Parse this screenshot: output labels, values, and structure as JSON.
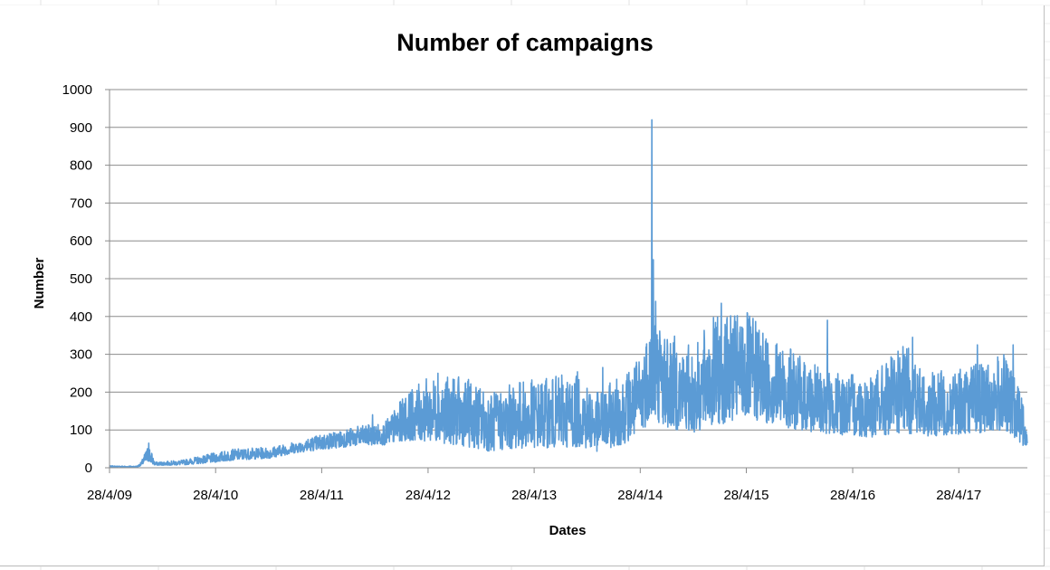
{
  "chart_data": {
    "type": "line",
    "title": "Number of campaigns",
    "xlabel": "Dates",
    "ylabel": "Number",
    "ylim": [
      0,
      1000
    ],
    "yticks": [
      "0",
      "100",
      "200",
      "300",
      "400",
      "500",
      "600",
      "700",
      "800",
      "900",
      "1000"
    ],
    "x_range": [
      "2009-04-28",
      "2017-12-20"
    ],
    "xticks": [
      {
        "label": "28/4/09",
        "date": "2009-04-28"
      },
      {
        "label": "28/4/10",
        "date": "2010-04-28"
      },
      {
        "label": "28/4/11",
        "date": "2011-04-28"
      },
      {
        "label": "28/4/12",
        "date": "2012-04-28"
      },
      {
        "label": "28/4/13",
        "date": "2013-04-28"
      },
      {
        "label": "28/4/14",
        "date": "2014-04-28"
      },
      {
        "label": "28/4/15",
        "date": "2015-04-28"
      },
      {
        "label": "28/4/16",
        "date": "2016-04-28"
      },
      {
        "label": "28/4/17",
        "date": "2017-04-28"
      }
    ],
    "grid": true,
    "legend": "none",
    "series": [
      {
        "color": "#5b9bd5",
        "envelope": [
          {
            "date": "2009-04-28",
            "low": 0,
            "high": 5
          },
          {
            "date": "2009-08-01",
            "low": 0,
            "high": 5
          },
          {
            "date": "2009-08-15",
            "low": 5,
            "high": 15
          },
          {
            "date": "2009-09-10",
            "low": 5,
            "high": 65
          },
          {
            "date": "2009-10-01",
            "low": 5,
            "high": 15
          },
          {
            "date": "2010-01-01",
            "low": 5,
            "high": 20
          },
          {
            "date": "2010-04-28",
            "low": 10,
            "high": 40
          },
          {
            "date": "2010-07-01",
            "low": 15,
            "high": 50
          },
          {
            "date": "2010-11-01",
            "low": 20,
            "high": 55
          },
          {
            "date": "2011-02-01",
            "low": 35,
            "high": 70
          },
          {
            "date": "2011-04-28",
            "low": 40,
            "high": 90
          },
          {
            "date": "2011-09-01",
            "low": 50,
            "high": 110
          },
          {
            "date": "2011-12-01",
            "low": 50,
            "high": 120
          },
          {
            "date": "2012-02-15",
            "low": 50,
            "high": 200
          },
          {
            "date": "2012-05-01",
            "low": 40,
            "high": 240
          },
          {
            "date": "2012-09-01",
            "low": 25,
            "high": 240
          },
          {
            "date": "2012-12-01",
            "low": 15,
            "high": 200
          },
          {
            "date": "2013-03-01",
            "low": 20,
            "high": 230
          },
          {
            "date": "2013-07-01",
            "low": 20,
            "high": 240
          },
          {
            "date": "2013-10-01",
            "low": 20,
            "high": 255
          },
          {
            "date": "2013-12-01",
            "low": 15,
            "high": 200
          },
          {
            "date": "2014-03-01",
            "low": 30,
            "high": 250
          },
          {
            "date": "2014-05-01",
            "low": 50,
            "high": 300
          },
          {
            "date": "2014-06-01",
            "low": 80,
            "high": 430
          },
          {
            "date": "2014-08-01",
            "low": 60,
            "high": 360
          },
          {
            "date": "2014-11-01",
            "low": 50,
            "high": 320
          },
          {
            "date": "2015-01-01",
            "low": 60,
            "high": 400
          },
          {
            "date": "2015-04-28",
            "low": 80,
            "high": 410
          },
          {
            "date": "2015-09-01",
            "low": 70,
            "high": 330
          },
          {
            "date": "2015-12-01",
            "low": 60,
            "high": 280
          },
          {
            "date": "2016-03-01",
            "low": 60,
            "high": 250
          },
          {
            "date": "2016-07-01",
            "low": 50,
            "high": 250
          },
          {
            "date": "2016-11-01",
            "low": 50,
            "high": 330
          },
          {
            "date": "2017-01-01",
            "low": 50,
            "high": 250
          },
          {
            "date": "2017-06-01",
            "low": 60,
            "high": 270
          },
          {
            "date": "2017-10-01",
            "low": 60,
            "high": 300
          },
          {
            "date": "2017-12-01",
            "low": 40,
            "high": 200
          },
          {
            "date": "2017-12-20",
            "low": 30,
            "high": 80
          }
        ],
        "peaks": [
          {
            "date": "2009-09-10",
            "value": 65
          },
          {
            "date": "2011-10-20",
            "value": 140
          },
          {
            "date": "2012-06-01",
            "value": 250
          },
          {
            "date": "2013-08-01",
            "value": 245
          },
          {
            "date": "2013-12-20",
            "value": 265
          },
          {
            "date": "2014-06-07",
            "value": 920
          },
          {
            "date": "2014-06-12",
            "value": 550
          },
          {
            "date": "2014-06-20",
            "value": 440
          },
          {
            "date": "2015-02-01",
            "value": 435
          },
          {
            "date": "2015-05-01",
            "value": 410
          },
          {
            "date": "2016-02-01",
            "value": 390
          },
          {
            "date": "2016-11-20",
            "value": 345
          },
          {
            "date": "2017-07-01",
            "value": 325
          },
          {
            "date": "2017-11-01",
            "value": 325
          }
        ]
      }
    ]
  }
}
